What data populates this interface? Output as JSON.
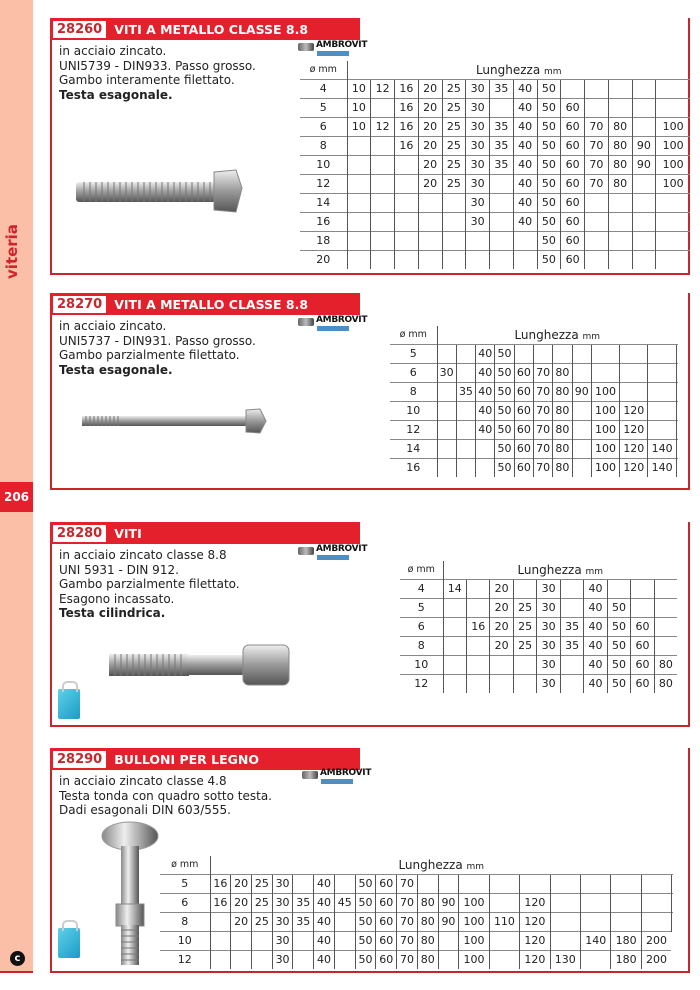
{
  "sidebar": {
    "category": "viteria",
    "page_number": "206",
    "logo_letter": "c"
  },
  "brand": {
    "name": "AMBROVIT"
  },
  "colors": {
    "accent": "#e3202b",
    "sidebar": "#fbbea6",
    "bag": "#1a9cc4"
  },
  "sections": [
    {
      "code": "28260",
      "title": "VITI A METALLO CLASSE 8.8",
      "desc": [
        "in acciaio zincato.",
        "UNI5739 - DIN933. Passo grosso.",
        "Gambo interamente filettato."
      ],
      "desc_bold": "Testa esagonale.",
      "table": {
        "dia_header": "ø mm",
        "len_header": "Lunghezza",
        "len_unit": "mm",
        "rows": [
          [
            "4",
            "10",
            "12",
            "16",
            "20",
            "25",
            "30",
            "35",
            "40",
            "50",
            "",
            "",
            "",
            "",
            ""
          ],
          [
            "5",
            "10",
            "",
            "16",
            "20",
            "25",
            "30",
            "",
            "40",
            "50",
            "60",
            "",
            "",
            "",
            ""
          ],
          [
            "6",
            "10",
            "12",
            "16",
            "20",
            "25",
            "30",
            "35",
            "40",
            "50",
            "60",
            "70",
            "80",
            "",
            "100"
          ],
          [
            "8",
            "",
            "",
            "16",
            "20",
            "25",
            "30",
            "35",
            "40",
            "50",
            "60",
            "70",
            "80",
            "90",
            "100"
          ],
          [
            "10",
            "",
            "",
            "",
            "20",
            "25",
            "30",
            "35",
            "40",
            "50",
            "60",
            "70",
            "80",
            "90",
            "100"
          ],
          [
            "12",
            "",
            "",
            "",
            "20",
            "25",
            "30",
            "",
            "40",
            "50",
            "60",
            "70",
            "80",
            "",
            "100"
          ],
          [
            "14",
            "",
            "",
            "",
            "",
            "",
            "30",
            "",
            "40",
            "50",
            "60",
            "",
            "",
            "",
            ""
          ],
          [
            "16",
            "",
            "",
            "",
            "",
            "",
            "30",
            "",
            "40",
            "50",
            "60",
            "",
            "",
            "",
            ""
          ],
          [
            "18",
            "",
            "",
            "",
            "",
            "",
            "",
            "",
            "",
            "50",
            "60",
            "",
            "",
            "",
            ""
          ],
          [
            "20",
            "",
            "",
            "",
            "",
            "",
            "",
            "",
            "",
            "50",
            "60",
            "",
            "",
            "",
            ""
          ]
        ]
      }
    },
    {
      "code": "28270",
      "title": "VITI A METALLO CLASSE 8.8",
      "desc": [
        "in acciaio zincato.",
        "UNI5737 - DIN931. Passo grosso.",
        "Gambo parzialmente filettato."
      ],
      "desc_bold": "Testa esagonale.",
      "table": {
        "dia_header": "ø mm",
        "len_header": "Lunghezza",
        "len_unit": "mm",
        "rows": [
          [
            "5",
            "",
            "",
            "40",
            "50",
            "",
            "",
            "",
            "",
            "",
            "",
            "",
            ""
          ],
          [
            "6",
            "30",
            "",
            "40",
            "50",
            "60",
            "70",
            "80",
            "",
            "",
            "",
            "",
            ""
          ],
          [
            "8",
            "",
            "35",
            "40",
            "50",
            "60",
            "70",
            "80",
            "90",
            "100",
            "",
            "",
            ""
          ],
          [
            "10",
            "",
            "",
            "40",
            "50",
            "60",
            "70",
            "80",
            "",
            "100",
            "120",
            "",
            ""
          ],
          [
            "12",
            "",
            "",
            "40",
            "50",
            "60",
            "70",
            "80",
            "",
            "100",
            "120",
            "",
            ""
          ],
          [
            "14",
            "",
            "",
            "",
            "50",
            "60",
            "70",
            "80",
            "",
            "100",
            "120",
            "140",
            ""
          ],
          [
            "16",
            "",
            "",
            "",
            "50",
            "60",
            "70",
            "80",
            "",
            "100",
            "120",
            "140",
            ""
          ]
        ]
      }
    },
    {
      "code": "28280",
      "title": "VITI",
      "desc": [
        "in acciaio zincato classe 8.8",
        "UNI 5931 - DIN 912.",
        "Gambo parzialmente filettato.",
        "Esagono incassato."
      ],
      "desc_bold": "Testa cilindrica.",
      "table": {
        "dia_header": "ø mm",
        "len_header": "Lunghezza",
        "len_unit": "mm",
        "rows": [
          [
            "4",
            "14",
            "",
            "20",
            "",
            "30",
            "",
            "40",
            "",
            "",
            ""
          ],
          [
            "5",
            "",
            "",
            "20",
            "25",
            "30",
            "",
            "40",
            "50",
            "",
            ""
          ],
          [
            "6",
            "",
            "16",
            "20",
            "25",
            "30",
            "35",
            "40",
            "50",
            "60",
            ""
          ],
          [
            "8",
            "",
            "",
            "20",
            "25",
            "30",
            "35",
            "40",
            "50",
            "60",
            ""
          ],
          [
            "10",
            "",
            "",
            "",
            "",
            "30",
            "",
            "40",
            "50",
            "60",
            "80"
          ],
          [
            "12",
            "",
            "",
            "",
            "",
            "30",
            "",
            "40",
            "50",
            "60",
            "80"
          ]
        ]
      }
    },
    {
      "code": "28290",
      "title": "BULLONI PER LEGNO",
      "desc": [
        "in acciaio zincato classe 4.8",
        "Testa tonda con quadro sotto testa.",
        "Dadi esagonali  DIN 603/555."
      ],
      "desc_bold": "",
      "table": {
        "dia_header": "ø mm",
        "len_header": "Lunghezza",
        "len_unit": "mm",
        "rows": [
          [
            "5",
            "16",
            "20",
            "25",
            "30",
            "",
            "40",
            "",
            "50",
            "60",
            "70",
            "",
            "",
            "",
            "",
            "",
            "",
            "",
            "",
            "",
            ""
          ],
          [
            "6",
            "16",
            "20",
            "25",
            "30",
            "35",
            "40",
            "45",
            "50",
            "60",
            "70",
            "80",
            "90",
            "100",
            "",
            "120",
            "",
            "",
            "",
            "",
            ""
          ],
          [
            "8",
            "",
            "20",
            "25",
            "30",
            "35",
            "40",
            "",
            "50",
            "60",
            "70",
            "80",
            "90",
            "100",
            "110",
            "120",
            "",
            "",
            "",
            "",
            ""
          ],
          [
            "10",
            "",
            "",
            "",
            "30",
            "",
            "40",
            "",
            "50",
            "60",
            "70",
            "80",
            "",
            "100",
            "",
            "120",
            "",
            "140",
            "180",
            "200"
          ],
          [
            "12",
            "",
            "",
            "",
            "30",
            "",
            "40",
            "",
            "50",
            "60",
            "70",
            "80",
            "",
            "100",
            "",
            "120",
            "130",
            "",
            "180",
            "200"
          ]
        ]
      }
    }
  ]
}
